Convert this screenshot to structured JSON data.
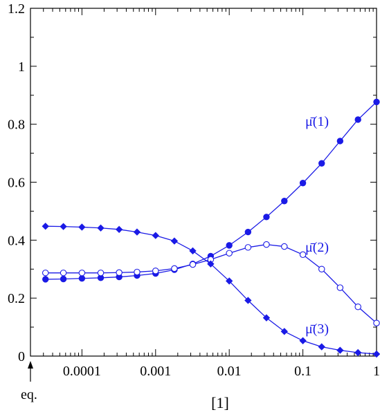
{
  "chart_data": {
    "type": "line",
    "xscale": "log",
    "xlabel": "[1]",
    "ylabel": "",
    "xlim": [
      2e-05,
      1
    ],
    "ylim": [
      0,
      1.2
    ],
    "xticks": [
      0.0001,
      0.001,
      0.01,
      0.1,
      1
    ],
    "xtick_labels": [
      "0.0001",
      "0.001",
      "0.01",
      "0.1",
      "1"
    ],
    "yticks": [
      0,
      0.2,
      0.4,
      0.6,
      0.8,
      1,
      1.2
    ],
    "ytick_labels": [
      "0",
      "0.2",
      "0.4",
      "0.6",
      "0.8",
      "1",
      "1.2"
    ],
    "equilibrium_marker": "eq.",
    "grid": false,
    "x": [
      3.2e-05,
      5.6e-05,
      0.0001,
      0.00018,
      0.00032,
      0.00056,
      0.001,
      0.0018,
      0.0032,
      0.0056,
      0.01,
      0.018,
      0.032,
      0.056,
      0.1,
      0.18,
      0.32,
      0.56,
      1
    ],
    "series": [
      {
        "name": "μ̄(1)",
        "marker": "filled-circle",
        "color": "#1a1ae6",
        "values": [
          0.265,
          0.266,
          0.268,
          0.27,
          0.273,
          0.278,
          0.285,
          0.298,
          0.318,
          0.345,
          0.382,
          0.428,
          0.48,
          0.535,
          0.597,
          0.665,
          0.742,
          0.816,
          0.877
        ]
      },
      {
        "name": "μ̄(2)",
        "marker": "open-circle",
        "color": "#1a1ae6",
        "values": [
          0.287,
          0.287,
          0.287,
          0.287,
          0.288,
          0.29,
          0.294,
          0.302,
          0.316,
          0.333,
          0.355,
          0.375,
          0.385,
          0.378,
          0.35,
          0.3,
          0.236,
          0.17,
          0.114
        ]
      },
      {
        "name": "μ̄(3)",
        "marker": "filled-diamond",
        "color": "#1a1ae6",
        "values": [
          0.448,
          0.447,
          0.445,
          0.442,
          0.437,
          0.428,
          0.416,
          0.397,
          0.363,
          0.318,
          0.259,
          0.192,
          0.132,
          0.085,
          0.053,
          0.032,
          0.02,
          0.012,
          0.007
        ]
      }
    ]
  }
}
